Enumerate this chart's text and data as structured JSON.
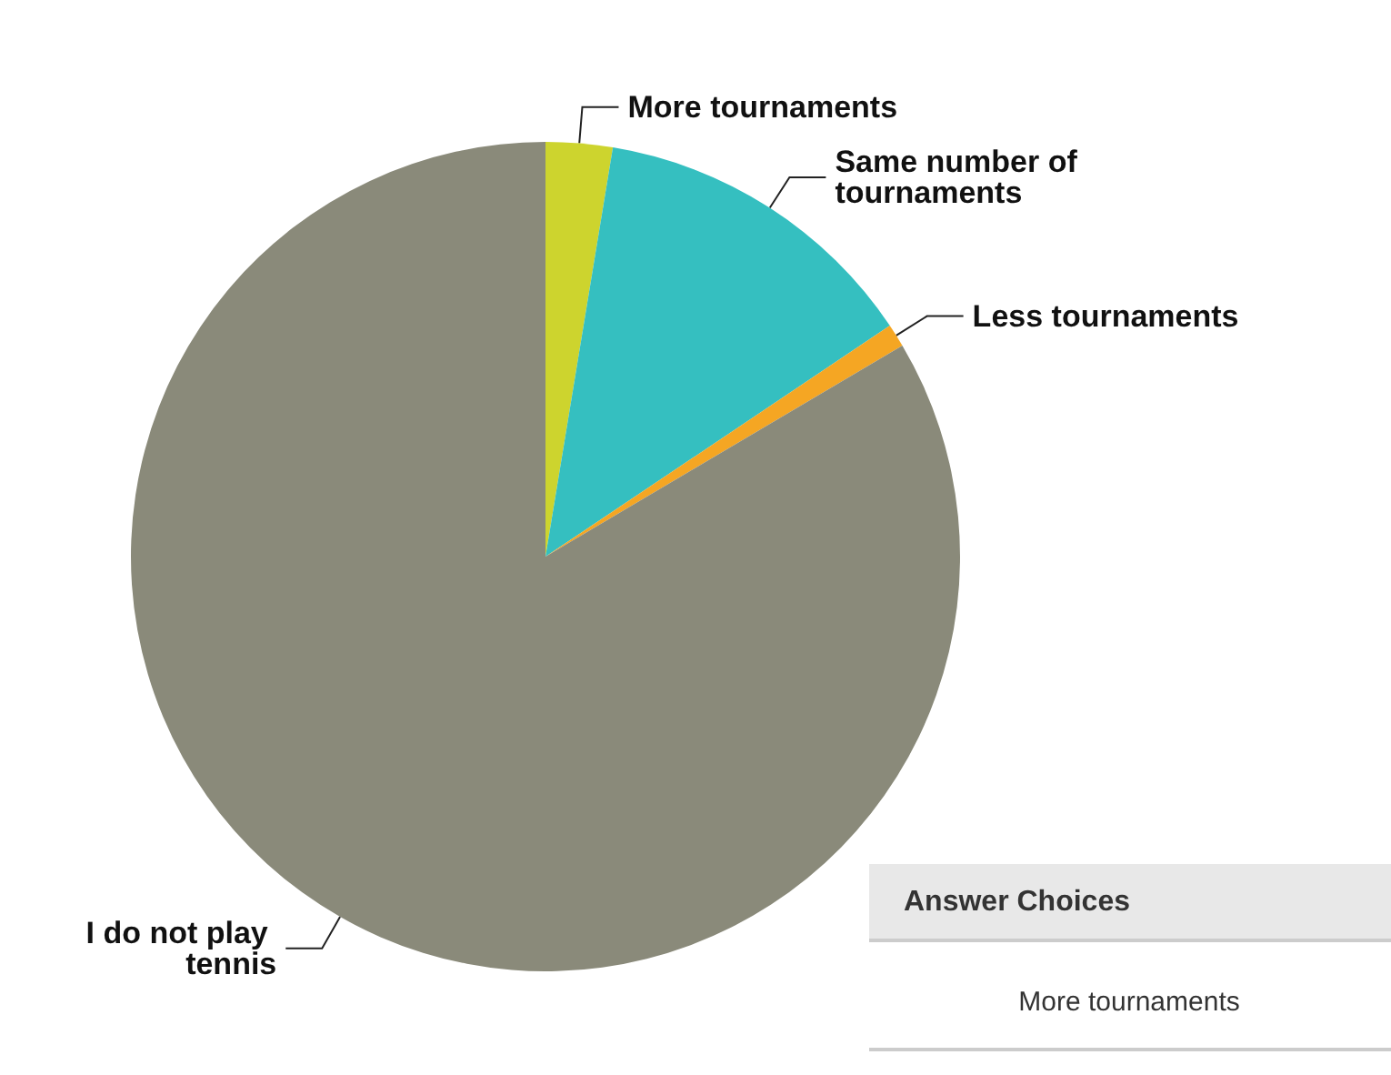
{
  "chart_data": {
    "type": "pie",
    "categories": [
      "More tournaments",
      "Same number of tournaments",
      "Less tournaments",
      "I do not play tennis"
    ],
    "values": [
      2.6,
      13,
      0.9,
      83.5
    ],
    "colors": [
      "#cdd42e",
      "#35bfc0",
      "#f5a623",
      "#8a8a7a"
    ],
    "legend": false,
    "annotations": [
      "Answer Choices",
      "More tournaments"
    ]
  }
}
